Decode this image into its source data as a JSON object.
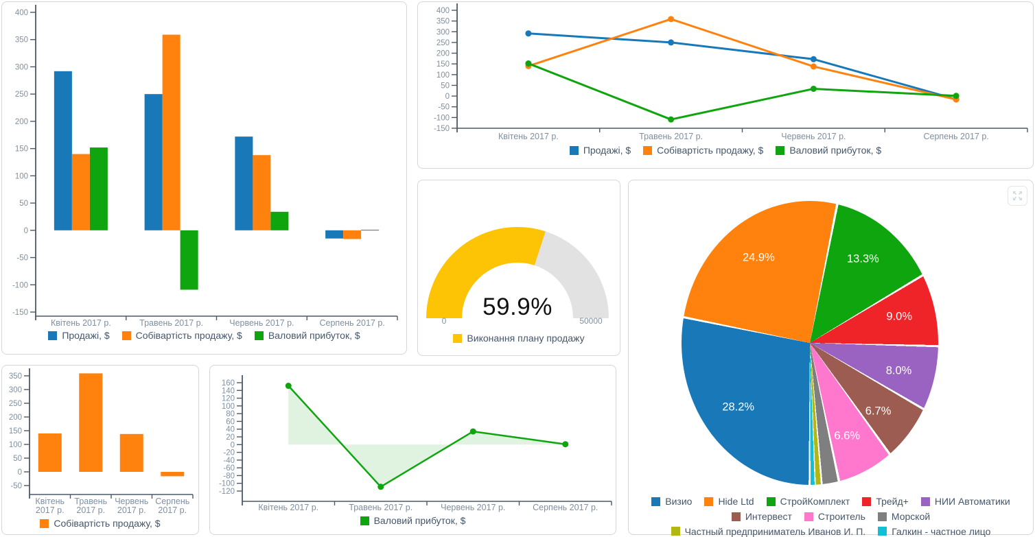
{
  "palette": {
    "blue": "#1878b8",
    "orange": "#ff820e",
    "green": "#0fa50f",
    "red": "#ee2428",
    "purple": "#9a63c2",
    "brown": "#9d5c51",
    "pink": "#ff78cd",
    "gray": "#7f7f7f",
    "olive": "#b3b714",
    "cyan": "#12bfd4",
    "yellow": "#fdc305",
    "gauge_track": "#e2e2e2",
    "axis_line": "#4c5866",
    "tick_text": "#7f8fa0",
    "legend_text": "#44566b"
  },
  "chart_data": [
    {
      "id": "sales-cost-profit-bars",
      "type": "bar",
      "categories": [
        "Квітень 2017 р.",
        "Травень 2017 р.",
        "Червень 2017 р.",
        "Серпень 2017 р."
      ],
      "series": [
        {
          "name": "Продажі, $",
          "color": "#1878b8",
          "values": [
            292,
            250,
            172,
            -15
          ]
        },
        {
          "name": "Собівартість продажу, $",
          "color": "#ff820e",
          "values": [
            140,
            359,
            138,
            -16
          ]
        },
        {
          "name": "Валовий прибуток, $",
          "color": "#0fa50f",
          "values": [
            152,
            -109,
            34,
            1
          ]
        }
      ],
      "ylim": [
        -150,
        400
      ],
      "ytick_step": 50,
      "grid": false,
      "legend_position": "bottom"
    },
    {
      "id": "sales-cost-profit-lines",
      "type": "line",
      "categories": [
        "Квітень 2017 р.",
        "Травень 2017 р.",
        "Червень 2017 р.",
        "Серпень 2017 р."
      ],
      "series": [
        {
          "name": "Продажі, $",
          "color": "#1878b8",
          "values": [
            292,
            250,
            172,
            -15
          ]
        },
        {
          "name": "Собівартість продажу, $",
          "color": "#ff820e",
          "values": [
            140,
            359,
            138,
            -16
          ]
        },
        {
          "name": "Валовий прибуток, $",
          "color": "#0fa50f",
          "values": [
            152,
            -109,
            34,
            1
          ]
        }
      ],
      "ylim": [
        -150,
        400
      ],
      "ytick_step": 50,
      "grid": false,
      "legend_position": "bottom"
    },
    {
      "id": "sales-plan-gauge",
      "type": "gauge",
      "percent": 59.9,
      "value_label": "59.9%",
      "min_label": "0",
      "max_label": "50000",
      "series_name": "Виконання плану продажу",
      "color": "#fdc305",
      "track_color": "#e2e2e2"
    },
    {
      "id": "customers-pie",
      "type": "pie",
      "start_angle_deg": 180,
      "slices": [
        {
          "name": "Визио",
          "value": 28.2,
          "label": "28.2%",
          "color": "#1878b8"
        },
        {
          "name": "Hide Ltd",
          "value": 24.9,
          "label": "24.9%",
          "color": "#ff820e"
        },
        {
          "name": "СтройКомплект",
          "value": 13.3,
          "label": "13.3%",
          "color": "#0fa50f"
        },
        {
          "name": "Трейд+",
          "value": 9.0,
          "label": "9.0%",
          "color": "#ee2428"
        },
        {
          "name": "НИИ Автоматики",
          "value": 8.0,
          "label": "8.0%",
          "color": "#9a63c2"
        },
        {
          "name": "Интервест",
          "value": 6.7,
          "label": "6.7%",
          "color": "#9d5c51"
        },
        {
          "name": "Строитель",
          "value": 6.6,
          "label": "6.6%",
          "color": "#ff78cd"
        },
        {
          "name": "Морской",
          "value": 2.0,
          "label": "",
          "color": "#7f7f7f"
        },
        {
          "name": "Частный предприниматель Иванов И. П.",
          "value": 0.7,
          "label": "",
          "color": "#b3b714"
        },
        {
          "name": "Галкин - частное лицо",
          "value": 0.6,
          "label": "",
          "color": "#12bfd4"
        }
      ],
      "legend_position": "bottom"
    },
    {
      "id": "cost-bars",
      "type": "bar",
      "categories": [
        "Квітень 2017 р.",
        "Травень 2017 р.",
        "Червень 2017 р.",
        "Серпень 2017 р."
      ],
      "series": [
        {
          "name": "Собівартість продажу, $",
          "color": "#ff820e",
          "values": [
            140,
            359,
            138,
            -16
          ]
        }
      ],
      "ylim": [
        -50,
        350
      ],
      "ytick_step": 50,
      "grid": false,
      "wrap_category_labels": true,
      "legend_position": "bottom"
    },
    {
      "id": "profit-area",
      "type": "area",
      "categories": [
        "Квітень 2017 р.",
        "Травень 2017 р.",
        "Червень 2017 р.",
        "Серпень 2017 р."
      ],
      "series": [
        {
          "name": "Валовий прибуток, $",
          "color": "#0fa50f",
          "values": [
            152,
            -109,
            34,
            1
          ]
        }
      ],
      "ylim": [
        -120,
        160
      ],
      "ytick_step": 20,
      "grid": false,
      "legend_position": "bottom"
    }
  ]
}
